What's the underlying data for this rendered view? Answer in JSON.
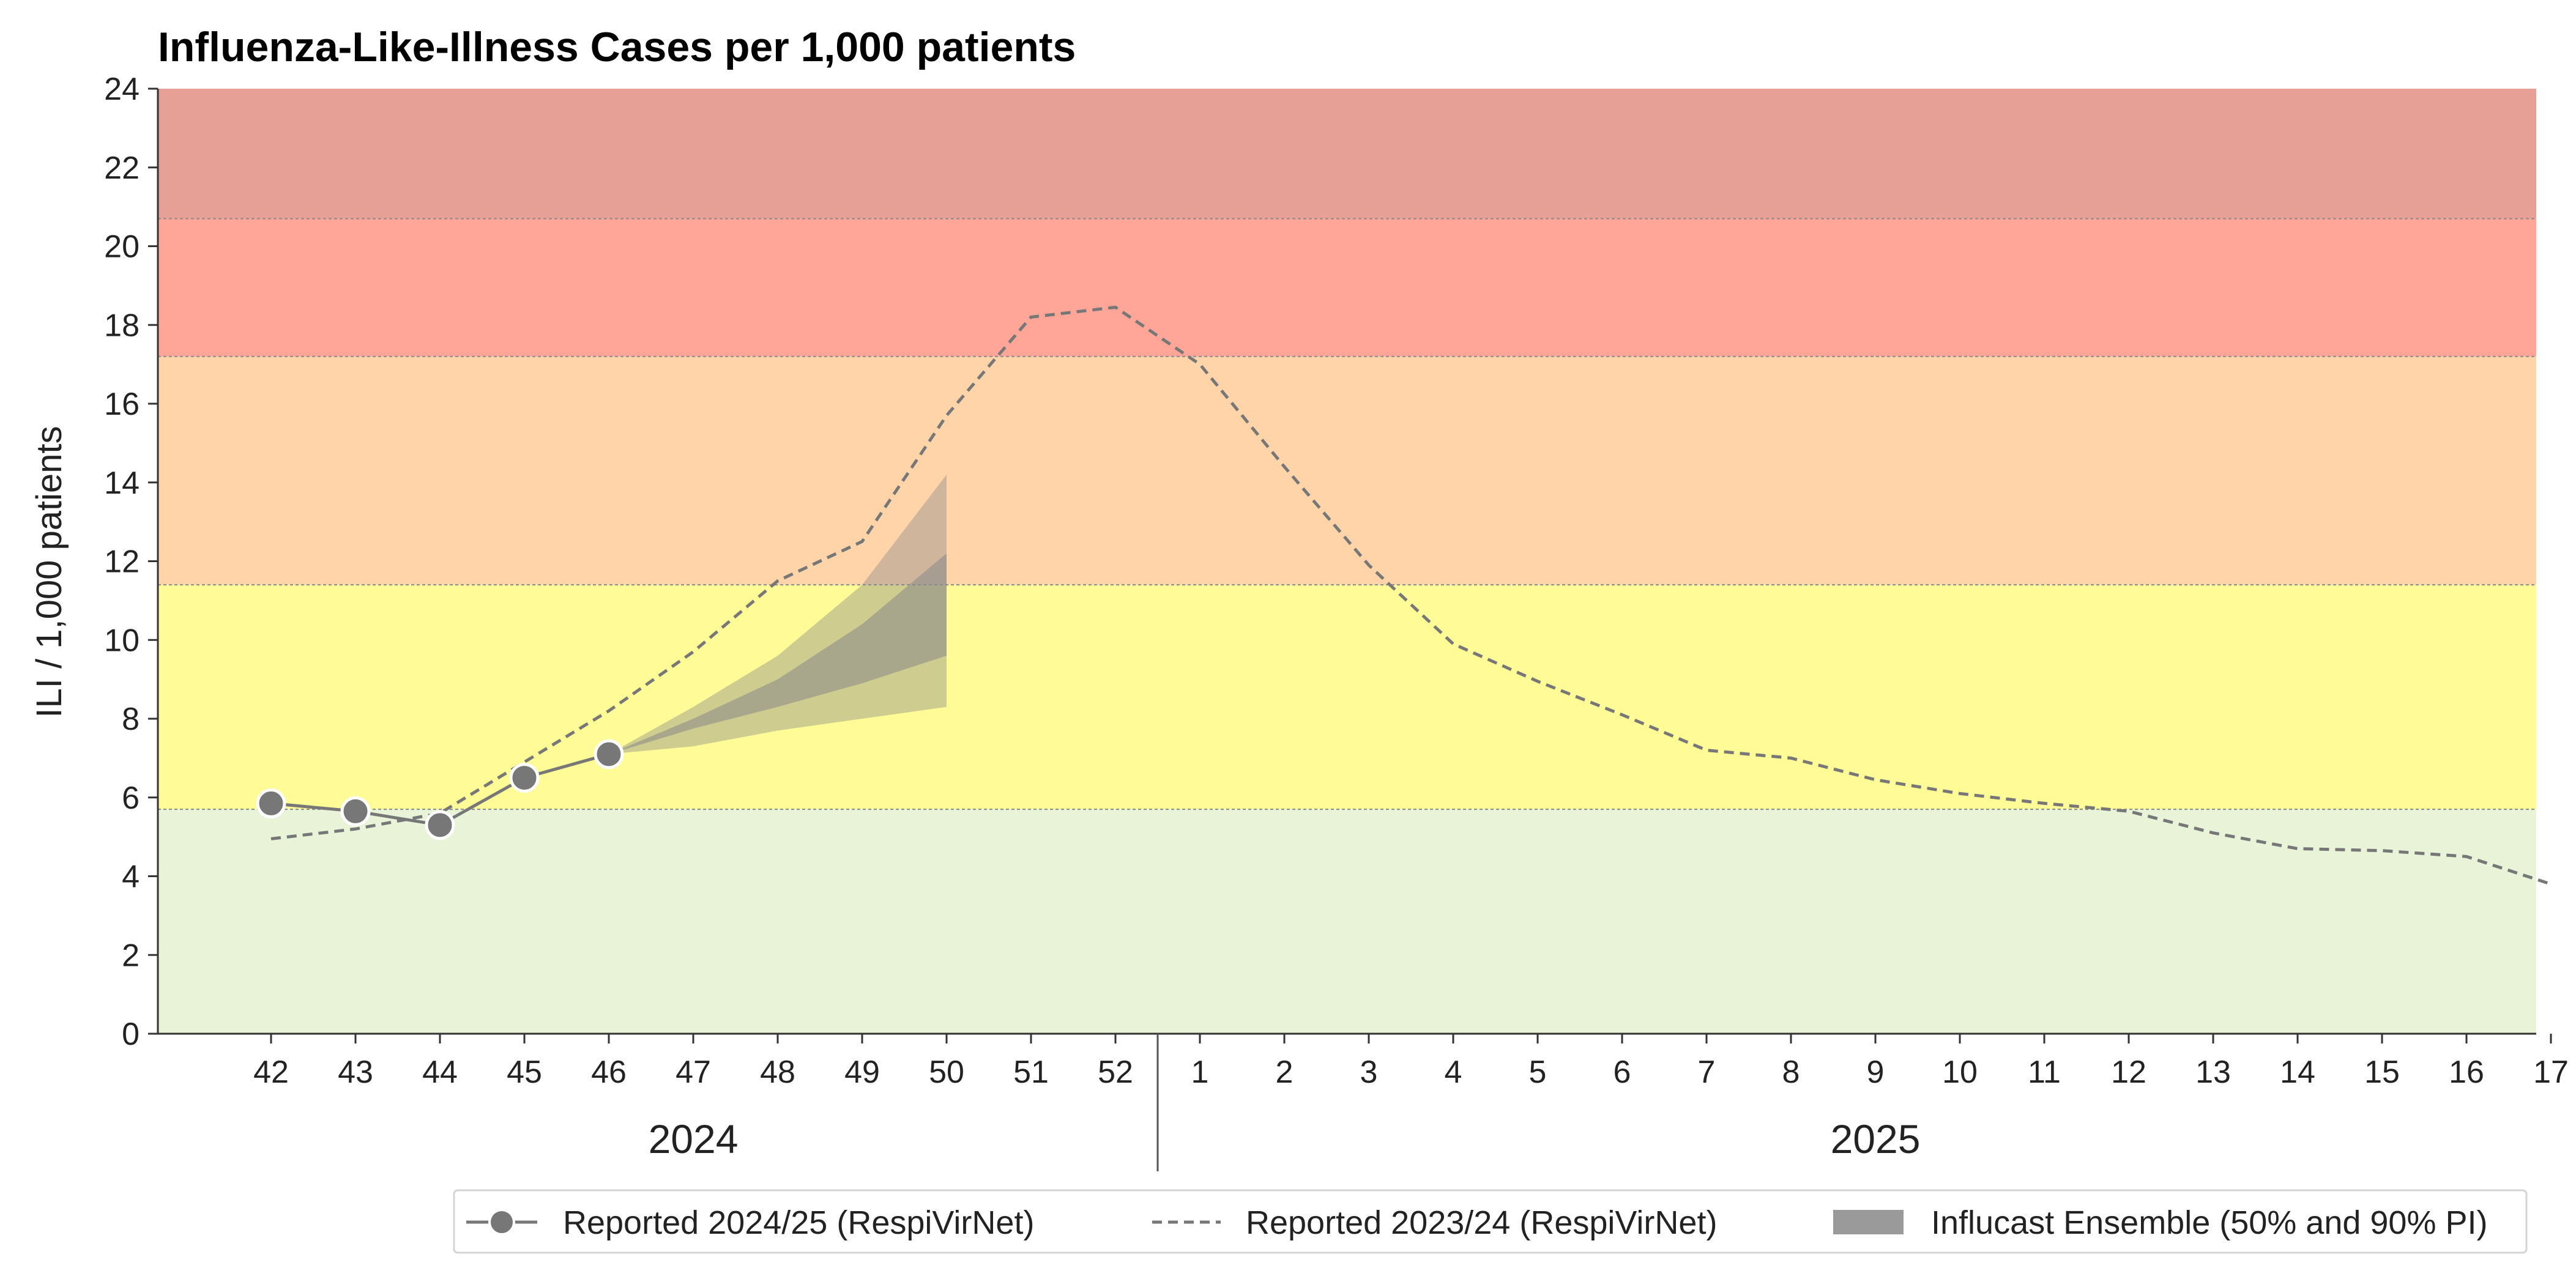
{
  "chart_data": {
    "type": "line",
    "title": "Influenza-Like-Illness Cases per 1,000 patients",
    "xlabel": "",
    "ylabel": "ILI / 1,000 patients",
    "ylim": [
      0,
      24
    ],
    "yticks": [
      "0",
      "2",
      "4",
      "6",
      "8",
      "10",
      "12",
      "14",
      "16",
      "18",
      "20",
      "22",
      "24"
    ],
    "x_categories": [
      "42",
      "43",
      "44",
      "45",
      "46",
      "47",
      "48",
      "49",
      "50",
      "51",
      "52",
      "1",
      "2",
      "3",
      "4",
      "5",
      "6",
      "7",
      "8",
      "9",
      "10",
      "11",
      "12",
      "13",
      "14",
      "15",
      "16",
      "17"
    ],
    "year_labels": [
      {
        "label": "2024",
        "from": "42",
        "to": "52"
      },
      {
        "label": "2025",
        "from": "1",
        "to": "17"
      }
    ],
    "grid": false,
    "intensity_bands": [
      {
        "from": 0,
        "to": 5.7,
        "color": "#e8f3d8"
      },
      {
        "from": 5.7,
        "to": 11.4,
        "color": "#fffb96"
      },
      {
        "from": 11.4,
        "to": 17.2,
        "color": "#ffd4a9"
      },
      {
        "from": 17.2,
        "to": 20.7,
        "color": "#ffa698"
      },
      {
        "from": 20.7,
        "to": 24,
        "color": "#e6a096"
      }
    ],
    "series": [
      {
        "name": "Reported 2024/25 (RespiVirNet)",
        "style": "solid-markers",
        "color": "#777777",
        "x": [
          "42",
          "43",
          "44",
          "45",
          "46"
        ],
        "values": [
          5.85,
          5.65,
          5.3,
          6.5,
          7.1
        ]
      },
      {
        "name": "Reported 2023/24 (RespiVirNet)",
        "style": "dashed",
        "color": "#777777",
        "x": [
          "42",
          "43",
          "44",
          "45",
          "46",
          "47",
          "48",
          "49",
          "50",
          "51",
          "52",
          "1",
          "2",
          "3",
          "4",
          "5",
          "6",
          "7",
          "8",
          "9",
          "10",
          "11",
          "12",
          "13",
          "14",
          "15",
          "16",
          "17"
        ],
        "values": [
          4.95,
          5.2,
          5.6,
          6.9,
          8.2,
          9.7,
          11.5,
          12.5,
          15.7,
          18.2,
          18.45,
          17.0,
          14.4,
          11.9,
          9.9,
          8.95,
          8.1,
          7.2,
          7.0,
          6.45,
          6.1,
          5.85,
          5.65,
          5.1,
          4.7,
          4.65,
          4.5,
          3.8
        ]
      },
      {
        "name": "Influcast Ensemble (50% and 90% PI)",
        "style": "band",
        "color": "#888888",
        "x": [
          "46",
          "47",
          "48",
          "49",
          "50"
        ],
        "lower90": [
          7.1,
          7.3,
          7.7,
          8.0,
          8.3
        ],
        "upper90": [
          7.1,
          8.3,
          9.6,
          11.4,
          14.2
        ],
        "lower50": [
          7.1,
          7.75,
          8.3,
          8.9,
          9.6
        ],
        "upper50": [
          7.1,
          8.0,
          9.0,
          10.4,
          12.2
        ]
      }
    ],
    "legend": {
      "placement": "bottom-right",
      "entries": [
        {
          "label": "Reported 2024/25 (RespiVirNet)",
          "symbol": "line-marker"
        },
        {
          "label": "Reported 2023/24 (RespiVirNet)",
          "symbol": "dashed-line"
        },
        {
          "label": "Influcast Ensemble (50% and 90% PI)",
          "symbol": "patch"
        }
      ]
    }
  }
}
